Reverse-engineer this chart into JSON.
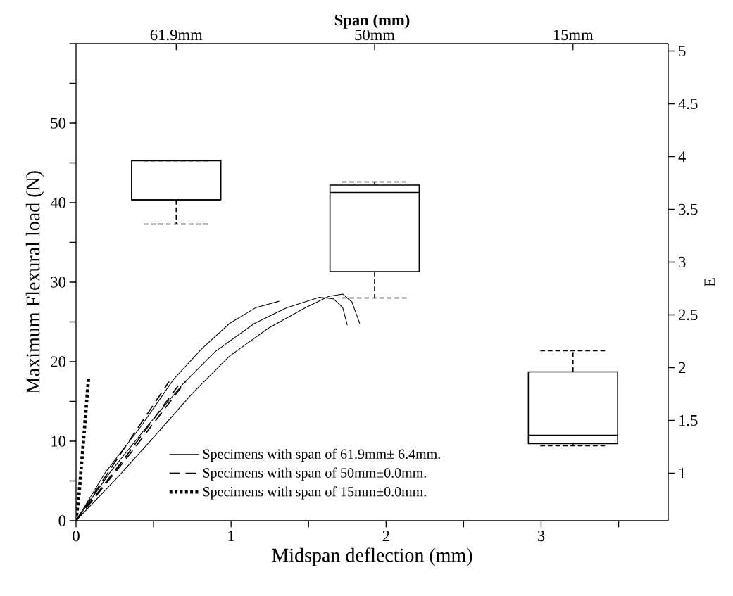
{
  "chart_data": [
    {
      "type": "line",
      "xlabel": "Midspan deflection (mm)",
      "ylabel": "Maximum Flexural load (N)",
      "legend": "bottom",
      "xlim": [
        0,
        3.82
      ],
      "xticks": [
        0,
        {
          "value": 0.5,
          "label": null
        },
        1,
        {
          "value": 1.5,
          "label": null
        },
        2,
        {
          "value": 2.5,
          "label": null
        },
        3,
        {
          "value": 3.5,
          "label": null
        }
      ],
      "ylim": [
        0,
        60
      ],
      "yticks": [
        0,
        {
          "value": 5,
          "label": null
        },
        10,
        {
          "value": 15,
          "label": null
        },
        20,
        {
          "value": 25,
          "label": null
        },
        30,
        {
          "value": 35,
          "label": null
        },
        40,
        {
          "value": 45,
          "label": null
        },
        50,
        {
          "value": 55,
          "label": null
        },
        {
          "value": 60,
          "label": null
        }
      ],
      "series": [
        {
          "name": "Specimens with span of 61.9mm± 6.4mm.",
          "color": "#000000",
          "line_style": "solid",
          "x": [
            0,
            0.19,
            0.42,
            0.63,
            0.81,
            0.99,
            1.16,
            1.31
          ],
          "values": [
            0,
            6.1,
            11.9,
            17.8,
            21.6,
            24.8,
            26.8,
            27.6
          ]
        },
        {
          "color": "#000000",
          "line_style": "solid",
          "x": [
            0,
            0.22,
            0.46,
            0.69,
            0.9,
            1.15,
            1.36,
            1.57,
            1.66,
            1.72,
            1.75
          ],
          "values": [
            0,
            6.1,
            11.9,
            17.2,
            21.3,
            24.8,
            26.8,
            28.1,
            27.9,
            26.8,
            24.6
          ]
        },
        {
          "color": "#000000",
          "line_style": "solid",
          "x": [
            0,
            0.27,
            0.51,
            0.75,
            0.99,
            1.24,
            1.48,
            1.63,
            1.72,
            1.78,
            1.83
          ],
          "values": [
            0,
            5.5,
            10.7,
            16,
            20.7,
            24.2,
            26.8,
            28.2,
            28.5,
            27.5,
            24.8
          ]
        },
        {
          "name": "Specimens with span of 50mm±0.0mm.",
          "color": "#000000",
          "line_style": "dashed",
          "x": [
            0,
            0.3,
            0.6
          ],
          "values": [
            0,
            8.8,
            17.5
          ]
        },
        {
          "color": "#000000",
          "line_style": "dashed",
          "x": [
            0,
            0.33,
            0.66
          ],
          "values": [
            0,
            8.3,
            17.0
          ]
        },
        {
          "color": "#000000",
          "line_style": "dashed",
          "x": [
            0,
            0.36,
            0.71
          ],
          "values": [
            0,
            8.7,
            17.6
          ]
        },
        {
          "name": "Specimens with span of 15mm±0.0mm.",
          "color": "#000000",
          "line_style": "dotted",
          "x": [
            0,
            0.02,
            0.05,
            0.08
          ],
          "values": [
            0,
            3.5,
            10.5,
            17.8
          ]
        }
      ]
    },
    {
      "type": "box",
      "xlabel": "Span (mm)",
      "ylabel": "E",
      "categories": [
        "61.9mm",
        "50mm",
        "15mm"
      ],
      "ylim": [
        0.55,
        5.07
      ],
      "yticks": [
        1,
        1.5,
        2,
        2.5,
        3,
        3.5,
        4,
        4.5,
        5
      ],
      "series": [
        {
          "color": "#000000",
          "boxes": [
            {
              "low": 3.36,
              "q1": 3.59,
              "median": 3.59,
              "q3": 3.96,
              "high": 3.96
            },
            {
              "low": 2.66,
              "q1": 2.91,
              "median": 3.66,
              "q3": 3.73,
              "high": 3.76
            },
            {
              "low": 1.26,
              "q1": 1.28,
              "median": 1.36,
              "q3": 1.96,
              "high": 2.16
            }
          ]
        }
      ]
    }
  ]
}
